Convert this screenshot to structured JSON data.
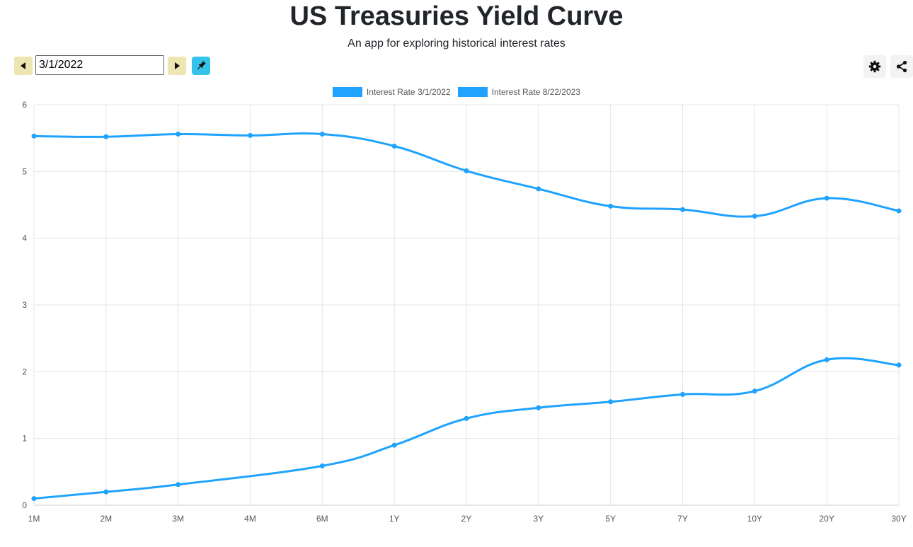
{
  "header": {
    "title": "US Treasuries Yield Curve",
    "subtitle": "An app for exploring historical interest rates"
  },
  "controls": {
    "date_value": "3/1/2022",
    "prev_icon": "caret-left-icon",
    "next_icon": "caret-right-icon",
    "pin_icon": "pin-icon",
    "settings_icon": "gear-icon",
    "share_icon": "share-icon"
  },
  "colors": {
    "series": "#1fa3ff",
    "nav_button": "#ede6b3",
    "pin_button": "#36c3ea",
    "grid": "#e5e5e5"
  },
  "chart_data": {
    "type": "line",
    "categories": [
      "1M",
      "2M",
      "3M",
      "4M",
      "6M",
      "1Y",
      "2Y",
      "3Y",
      "5Y",
      "7Y",
      "10Y",
      "20Y",
      "30Y"
    ],
    "series": [
      {
        "name": "Interest Rate 3/1/2022",
        "values": [
          0.1,
          0.2,
          0.31,
          null,
          0.59,
          0.9,
          1.3,
          1.46,
          1.55,
          1.66,
          1.71,
          2.18,
          2.1
        ]
      },
      {
        "name": "Interest Rate 8/22/2023",
        "values": [
          5.53,
          5.52,
          5.56,
          5.54,
          5.56,
          5.38,
          5.01,
          4.74,
          4.48,
          4.43,
          4.33,
          4.6,
          4.41
        ]
      }
    ],
    "y_ticks": [
      "0",
      "1",
      "2",
      "3",
      "4",
      "5",
      "6"
    ],
    "ylim": [
      0,
      6
    ],
    "grid": true,
    "legend_position": "top-center"
  }
}
